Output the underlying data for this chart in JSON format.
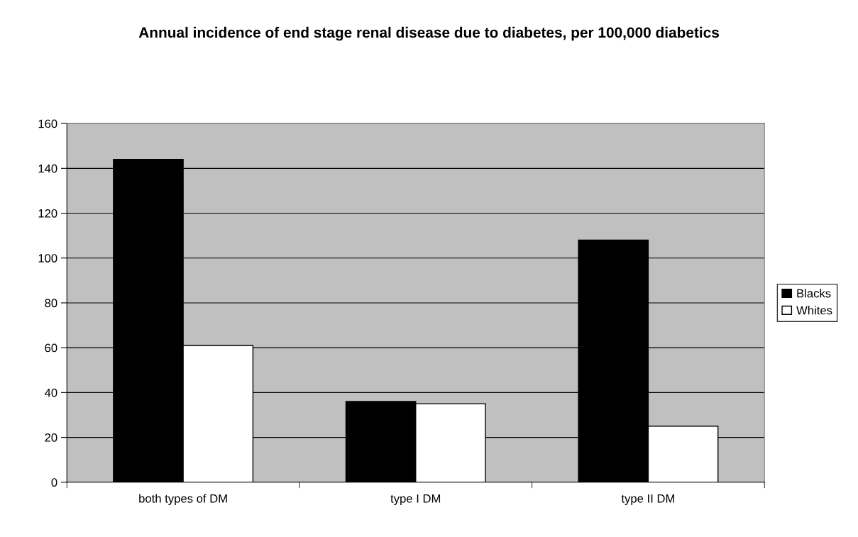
{
  "chart_data": {
    "type": "bar",
    "title": "Annual incidence of end stage renal disease due to diabetes, per 100,000 diabetics",
    "categories": [
      "both types of DM",
      "type I DM",
      "type II DM"
    ],
    "series": [
      {
        "name": "Blacks",
        "color": "#000000",
        "values": [
          144,
          36,
          108
        ]
      },
      {
        "name": "Whites",
        "color": "#ffffff",
        "values": [
          61,
          35,
          25
        ]
      }
    ],
    "ylim": [
      0,
      160
    ],
    "yticks": [
      0,
      20,
      40,
      60,
      80,
      100,
      120,
      140,
      160
    ],
    "grid": "y",
    "legend": "right"
  }
}
